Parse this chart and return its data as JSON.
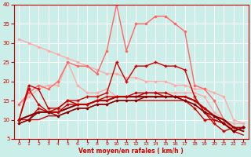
{
  "background_color": "#cceee8",
  "grid_color": "#ffffff",
  "xlabel": "Vent moyen/en rafales ( km/h )",
  "xlabel_color": "#cc0000",
  "tick_color": "#cc0000",
  "xlim": [
    -0.5,
    23.5
  ],
  "ylim": [
    5,
    40
  ],
  "yticks": [
    5,
    10,
    15,
    20,
    25,
    30,
    35,
    40
  ],
  "xticks": [
    0,
    1,
    2,
    3,
    4,
    5,
    6,
    7,
    8,
    9,
    10,
    11,
    12,
    13,
    14,
    15,
    16,
    17,
    18,
    19,
    20,
    21,
    22,
    23
  ],
  "lines": [
    {
      "x": [
        0,
        1,
        2,
        3,
        4,
        5,
        6,
        7,
        8,
        9,
        10,
        11,
        12,
        13,
        14,
        15,
        16,
        17,
        18,
        19,
        20,
        21,
        22,
        23
      ],
      "y": [
        31,
        30,
        29,
        28,
        27,
        26,
        25,
        24,
        23,
        22,
        22,
        21,
        21,
        20,
        20,
        20,
        19,
        19,
        18,
        18,
        17,
        16,
        10,
        9
      ],
      "color": "#ffaaaa",
      "lw": 1.0,
      "marker": "D",
      "ms": 1.5
    },
    {
      "x": [
        0,
        1,
        2,
        3,
        4,
        5,
        6,
        7,
        8,
        9,
        10,
        11,
        12,
        13,
        14,
        15,
        16,
        17,
        18,
        19,
        20,
        21,
        22,
        23
      ],
      "y": [
        14,
        16,
        18,
        19,
        19,
        25,
        19,
        17,
        17,
        18,
        16,
        16,
        16,
        17,
        17,
        17,
        17,
        17,
        17,
        16,
        12,
        10,
        9,
        9
      ],
      "color": "#ffaaaa",
      "lw": 1.0,
      "marker": "D",
      "ms": 1.5
    },
    {
      "x": [
        0,
        1,
        2,
        3,
        4,
        5,
        6,
        7,
        8,
        9,
        10,
        11,
        12,
        13,
        14,
        15,
        16,
        17,
        18,
        19,
        20,
        21,
        22,
        23
      ],
      "y": [
        14,
        17,
        19,
        18,
        20,
        25,
        24,
        24,
        22,
        28,
        40,
        28,
        35,
        35,
        37,
        37,
        35,
        33,
        19,
        18,
        15,
        10,
        7,
        8
      ],
      "color": "#ff6666",
      "lw": 1.0,
      "marker": "D",
      "ms": 1.5
    },
    {
      "x": [
        0,
        1,
        2,
        3,
        4,
        5,
        6,
        7,
        8,
        9,
        10,
        11,
        12,
        13,
        14,
        15,
        16,
        17,
        18,
        19,
        20,
        21,
        22,
        23
      ],
      "y": [
        10,
        19,
        18,
        13,
        13,
        15,
        15,
        16,
        16,
        17,
        25,
        20,
        24,
        24,
        25,
        24,
        24,
        23,
        16,
        12,
        9,
        7,
        8,
        8
      ],
      "color": "#cc0000",
      "lw": 1.0,
      "marker": "+",
      "ms": 3.5,
      "mew": 1.0
    },
    {
      "x": [
        0,
        1,
        2,
        3,
        4,
        5,
        6,
        7,
        8,
        9,
        10,
        11,
        12,
        13,
        14,
        15,
        16,
        17,
        18,
        19,
        20,
        21,
        22,
        23
      ],
      "y": [
        10,
        10,
        13,
        12,
        13,
        15,
        14,
        14,
        15,
        16,
        16,
        16,
        16,
        17,
        17,
        16,
        16,
        15,
        13,
        10,
        10,
        9,
        7,
        8
      ],
      "color": "#cc0000",
      "lw": 1.0,
      "marker": "+",
      "ms": 3.5,
      "mew": 1.0
    },
    {
      "x": [
        0,
        1,
        2,
        3,
        4,
        5,
        6,
        7,
        8,
        9,
        10,
        11,
        12,
        13,
        14,
        15,
        16,
        17,
        18,
        19,
        20,
        21,
        22,
        23
      ],
      "y": [
        10,
        11,
        12,
        12,
        12,
        13,
        14,
        14,
        15,
        15,
        16,
        16,
        16,
        16,
        16,
        16,
        16,
        16,
        15,
        13,
        11,
        10,
        8,
        7
      ],
      "color": "#880000",
      "lw": 1.5,
      "marker": null,
      "ms": 0,
      "mew": 0
    },
    {
      "x": [
        0,
        1,
        2,
        3,
        4,
        5,
        6,
        7,
        8,
        9,
        10,
        11,
        12,
        13,
        14,
        15,
        16,
        17,
        18,
        19,
        20,
        21,
        22,
        23
      ],
      "y": [
        9,
        10,
        10,
        11,
        11,
        12,
        13,
        13,
        14,
        14,
        15,
        15,
        15,
        15,
        15,
        15,
        15,
        15,
        14,
        12,
        10,
        9,
        7,
        6
      ],
      "color": "#cc0000",
      "lw": 1.0,
      "marker": null,
      "ms": 0,
      "mew": 0
    },
    {
      "x": [
        0,
        1,
        2,
        3,
        4,
        5,
        6,
        7,
        8,
        9,
        10,
        11,
        12,
        13,
        14,
        15,
        16,
        17,
        18,
        19,
        20,
        21,
        22,
        23
      ],
      "y": [
        10,
        18,
        14,
        12,
        12,
        14,
        14,
        14,
        15,
        15,
        16,
        16,
        17,
        17,
        17,
        17,
        16,
        16,
        15,
        13,
        11,
        9,
        7,
        8
      ],
      "color": "#cc0000",
      "lw": 1.0,
      "marker": "D",
      "ms": 1.5
    },
    {
      "x": [
        0,
        1,
        2,
        3,
        4,
        5,
        6,
        7,
        8,
        9,
        10,
        11,
        12,
        13,
        14,
        15,
        16,
        17,
        18,
        19,
        20,
        21,
        22,
        23
      ],
      "y": [
        9,
        10,
        12,
        12,
        11,
        12,
        13,
        13,
        14,
        14,
        15,
        15,
        15,
        16,
        16,
        16,
        16,
        15,
        14,
        12,
        11,
        9,
        7,
        8
      ],
      "color": "#880000",
      "lw": 1.0,
      "marker": "D",
      "ms": 1.5
    }
  ]
}
